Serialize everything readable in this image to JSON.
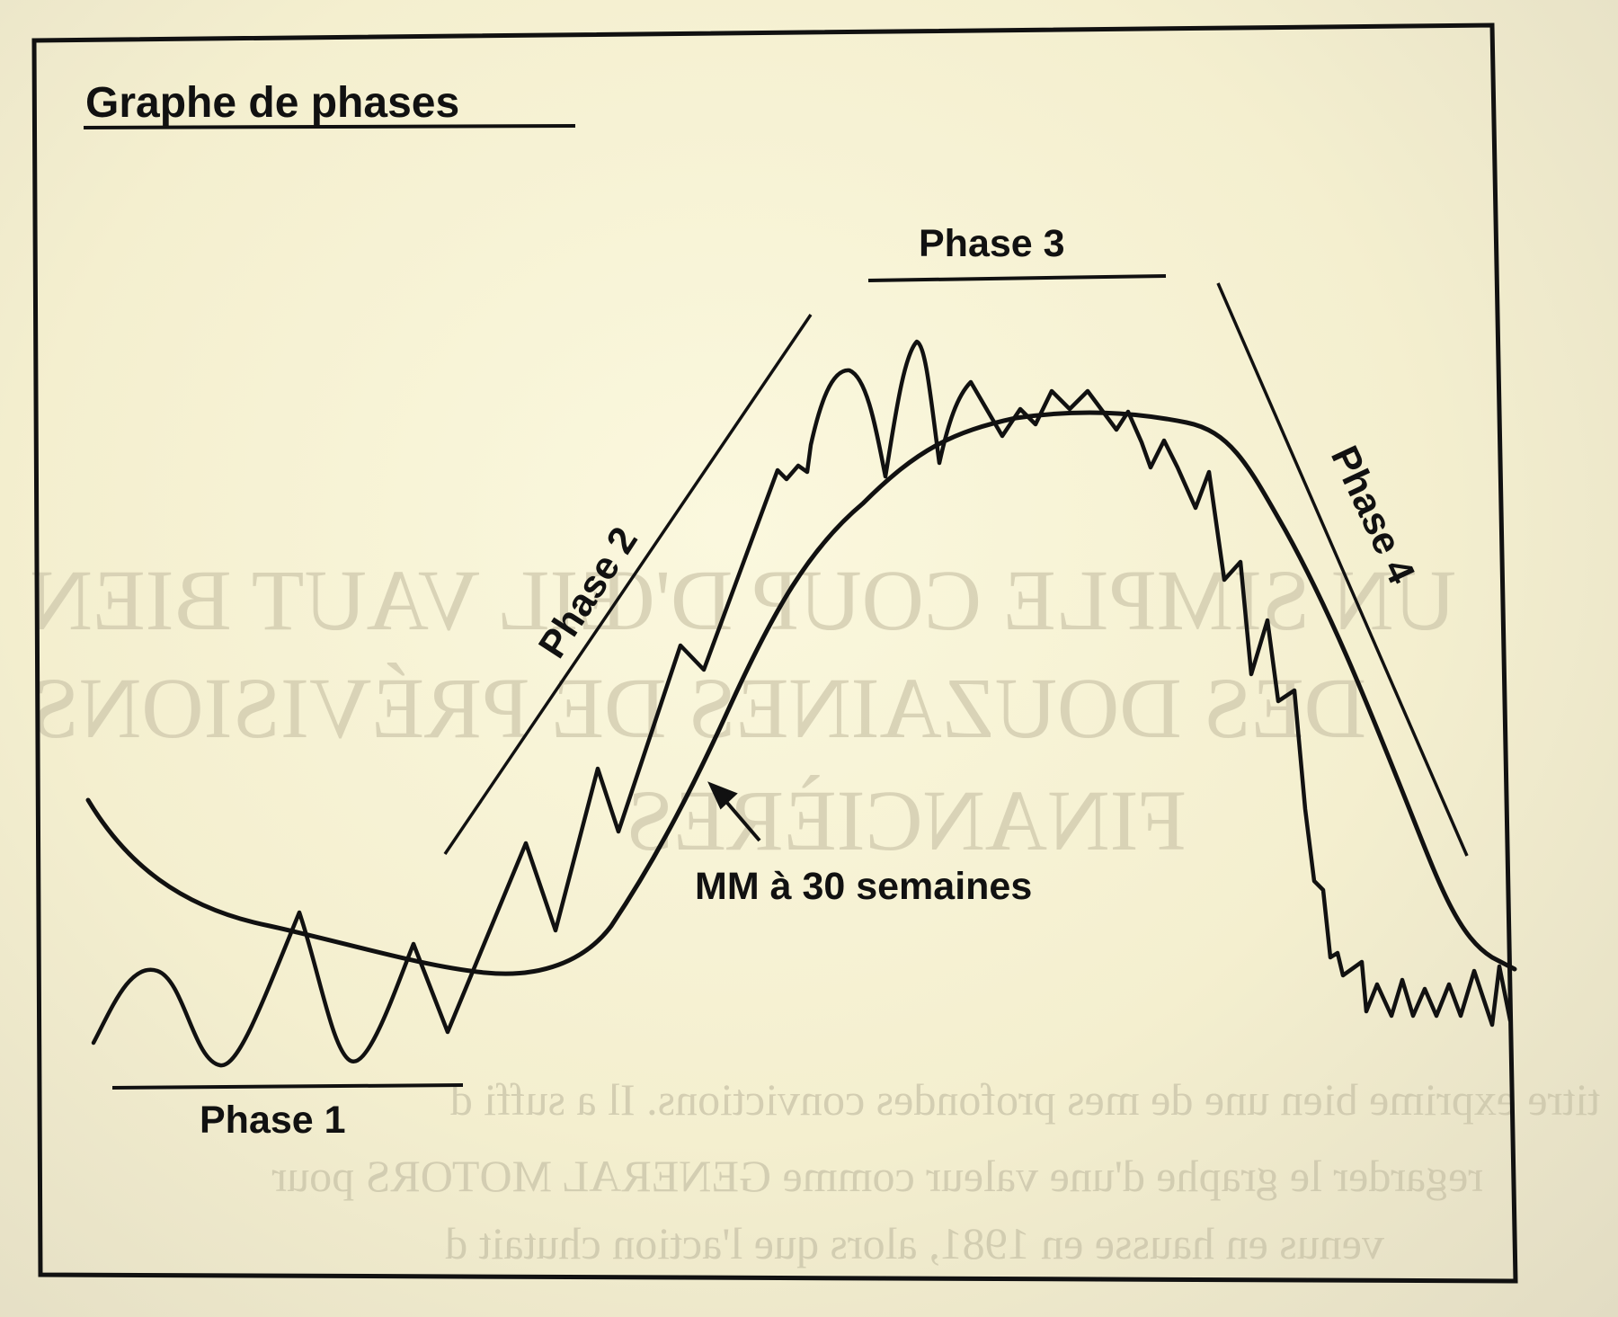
{
  "diagram": {
    "title": "Graphe de phases",
    "phase_labels": {
      "phase1": "Phase 1",
      "phase2": "Phase 2",
      "phase3": "Phase 3",
      "phase4": "Phase 4"
    },
    "moving_average_label": "MM à 30 semaines"
  },
  "show_through_text": {
    "heading_line1": "UN SIMPLE COUP D'ŒIL VAUT BIEN",
    "heading_line2": "DES DOUZAINES DE PRÉVISIONS",
    "heading_line3": "FINANCIÈRES",
    "body_line1": "titre exprime bien une de mes profondes convictions. Il a suffi d",
    "body_line2": "regarder le graphe d'une valeur comme GENERAL MOTORS pour",
    "body_line3": "venus en hausse en 1981, alors que l'action chutait d"
  },
  "colors": {
    "ink": "#111111",
    "paper": "#f8f4d6",
    "show_through": "#cfc9ad"
  }
}
